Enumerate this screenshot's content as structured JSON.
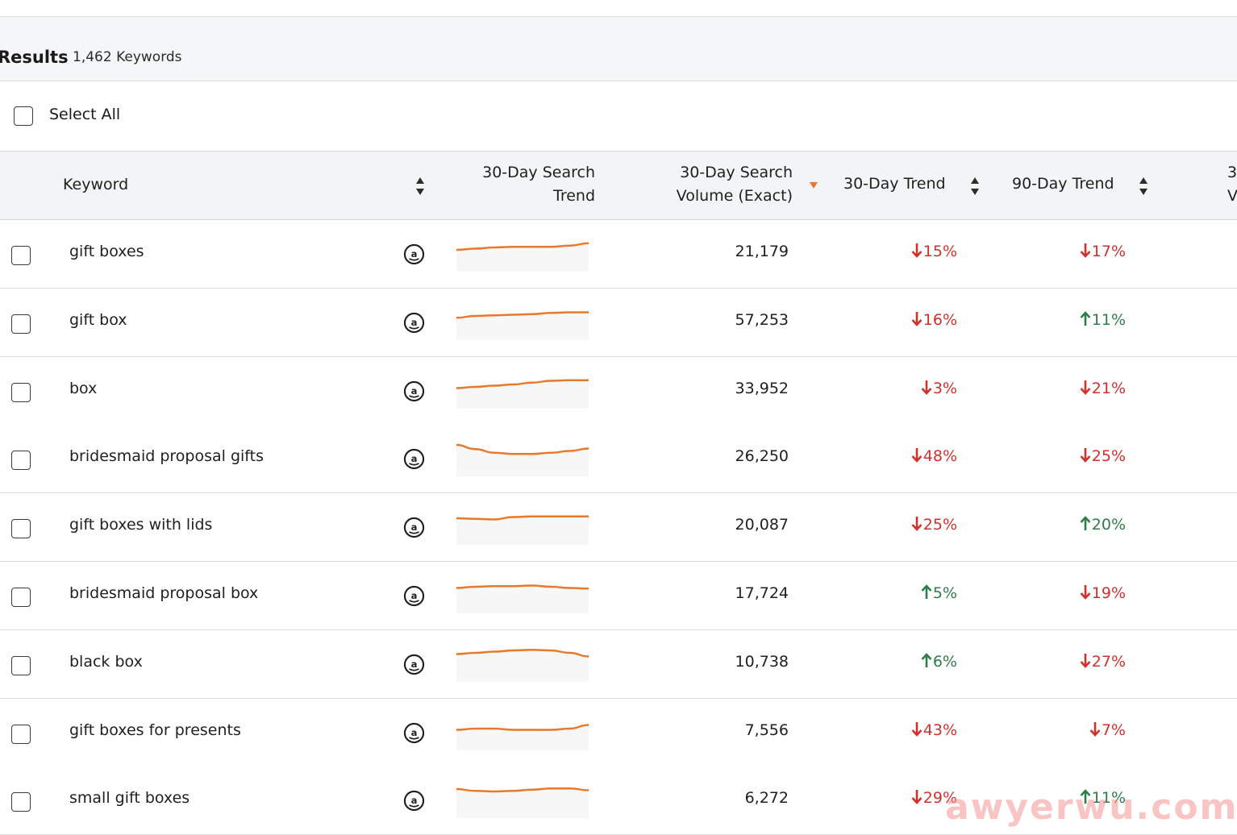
{
  "results": {
    "title": "Results",
    "count": "1,462 Keywords"
  },
  "select_all": {
    "label": "Select All"
  },
  "columns": {
    "keyword": "Keyword",
    "search_trend_line1": "30-Day Search",
    "search_trend_line2": "Trend",
    "volume_line1": "30-Day Search",
    "volume_line2": "Volume (Exact)",
    "trend30": "30-Day Trend",
    "trend90": "90-Day Trend",
    "clipped_line1": "3",
    "clipped_line2": "V"
  },
  "colors": {
    "up": "#2f7d4a",
    "down": "#d0312d",
    "sparkline": "#e8782a",
    "sort_active": "#e8782a"
  },
  "rows": [
    {
      "keyword": "gift boxes",
      "volume": "21,179",
      "trend30": "15%",
      "trend30_dir": "down",
      "trend90": "17%",
      "trend90_dir": "down",
      "spark": [
        10,
        9,
        8,
        7.5,
        7.5,
        7.5,
        6.5,
        4.5
      ]
    },
    {
      "keyword": "gift box",
      "volume": "57,253",
      "trend30": "16%",
      "trend30_dir": "down",
      "trend90": "11%",
      "trend90_dir": "up",
      "spark": [
        9.5,
        8,
        7.5,
        7,
        6.5,
        5.5,
        5,
        5
      ]
    },
    {
      "keyword": "box",
      "volume": "33,952",
      "trend30": "3%",
      "trend30_dir": "down",
      "trend90": "21%",
      "trend90_dir": "down",
      "spark": [
        11,
        10,
        9,
        8,
        6.5,
        5,
        4.5,
        4.5
      ]
    },
    {
      "keyword": "bridesmaid proposal gifts",
      "volume": "26,250",
      "trend30": "48%",
      "trend30_dir": "down",
      "trend90": "25%",
      "trend90_dir": "down",
      "spark": [
        2,
        5.5,
        8.5,
        9.5,
        9.5,
        8.5,
        7,
        5
      ]
    },
    {
      "keyword": "gift boxes with lids",
      "volume": "20,087",
      "trend30": "25%",
      "trend30_dir": "down",
      "trend90": "20%",
      "trend90_dir": "up",
      "spark": [
        6,
        6.5,
        7,
        5,
        4.5,
        4.5,
        4.5,
        4.5
      ]
    },
    {
      "keyword": "bridesmaid proposal box",
      "volume": "17,724",
      "trend30": "5%",
      "trend30_dir": "up",
      "trend90": "19%",
      "trend90_dir": "down",
      "spark": [
        7,
        6,
        5.5,
        5.5,
        5,
        6,
        7,
        7.5
      ]
    },
    {
      "keyword": "black box",
      "volume": "10,738",
      "trend30": "6%",
      "trend30_dir": "up",
      "trend90": "27%",
      "trend90_dir": "down",
      "spark": [
        5,
        4,
        3,
        2,
        1.5,
        2,
        4,
        7
      ]
    },
    {
      "keyword": "gift boxes for presents",
      "volume": "7,556",
      "trend30": "43%",
      "trend30_dir": "down",
      "trend90": "7%",
      "trend90_dir": "down",
      "spark": [
        11,
        10,
        10,
        11,
        11,
        11,
        10,
        7
      ]
    },
    {
      "keyword": "small gift boxes",
      "volume": "6,272",
      "trend30": "29%",
      "trend30_dir": "down",
      "trend90": "11%",
      "trend90_dir": "up",
      "spark": [
        4,
        5.5,
        6,
        5.5,
        4.5,
        3.5,
        3.5,
        5
      ]
    }
  ],
  "watermark": "awyerwu.com"
}
